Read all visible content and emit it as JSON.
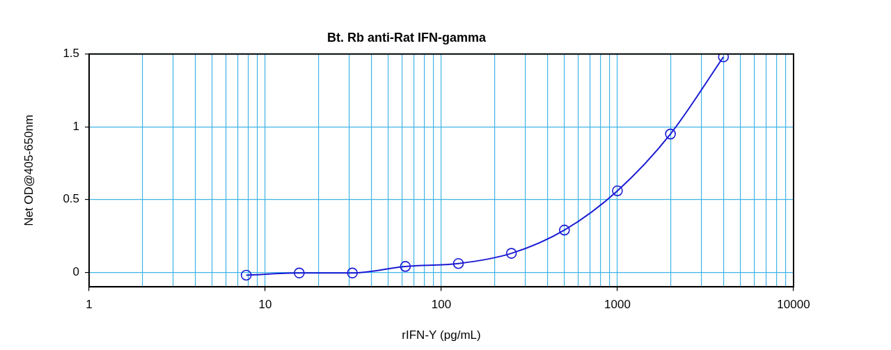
{
  "chart_data": {
    "type": "line",
    "title": "Bt. Rb anti-Rat IFN-gamma",
    "x_label": "rIFN-Y (pg/mL)",
    "y_label": "Net OD@405-650nm",
    "x": [
      7.8,
      15.6,
      31.25,
      62.5,
      125,
      250,
      500,
      1000,
      2000,
      4000
    ],
    "values": [
      -0.02,
      -0.005,
      -0.005,
      0.04,
      0.06,
      0.13,
      0.29,
      0.56,
      0.95,
      1.48
    ],
    "color": "#1a1ad4",
    "marker": "circle",
    "line_style": "solid",
    "log": "x",
    "grid": true,
    "xlim": [
      1,
      10000
    ],
    "xticks": [
      1,
      10,
      100,
      1000,
      10000
    ],
    "ylim": [
      -0.1,
      1.5
    ],
    "yticks": [
      0,
      0.5,
      1,
      1.5
    ]
  }
}
